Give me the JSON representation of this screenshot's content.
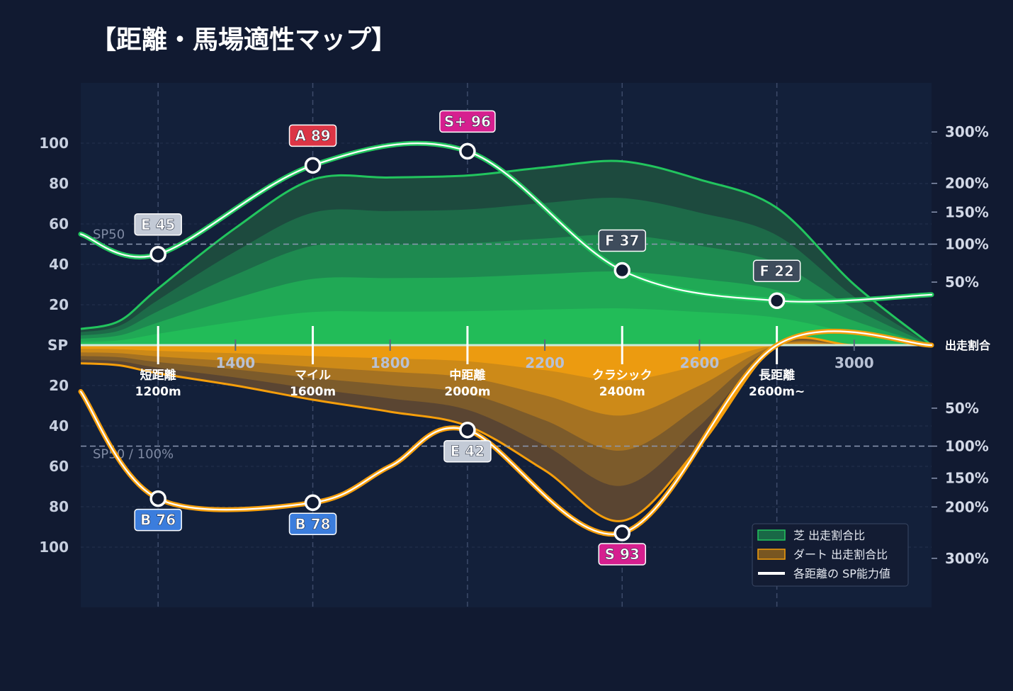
{
  "title": "【距離・馬場適性マップ】",
  "chart_data": {
    "type": "area",
    "x_axis": {
      "range": [
        1000,
        3200
      ],
      "ticks": [
        1400,
        1800,
        2200,
        2600,
        3000
      ]
    },
    "left_axis": {
      "center_label": "SP",
      "upper_ticks": [
        20,
        40,
        60,
        80,
        100
      ],
      "lower_ticks": [
        20,
        40,
        60,
        80,
        100
      ]
    },
    "right_axis": {
      "center_label": "出走割合",
      "upper_ticks": [
        "50%",
        "100%",
        "150%",
        "200%",
        "300%"
      ],
      "lower_ticks": [
        "50%",
        "100%",
        "150%",
        "200%",
        "300%"
      ]
    },
    "reference_lines": [
      {
        "label": "SP50",
        "side": "upper",
        "sp": 50
      },
      {
        "label": "SP50 / 100%",
        "side": "lower",
        "sp": 50
      }
    ],
    "categories": [
      {
        "name": "短距離",
        "distance": "1200m",
        "x": 1200
      },
      {
        "name": "マイル",
        "distance": "1600m",
        "x": 1600
      },
      {
        "name": "中距離",
        "distance": "2000m",
        "x": 2000
      },
      {
        "name": "クラシック",
        "distance": "2400m",
        "x": 2400
      },
      {
        "name": "長距離",
        "distance": "2600m~",
        "x": 2800
      }
    ],
    "series": [
      {
        "name": "芝 出走割合比",
        "color": "#22c55e",
        "x": [
          1000,
          1100,
          1200,
          1400,
          1600,
          1800,
          2000,
          2200,
          2400,
          2600,
          2800,
          3000,
          3200
        ],
        "values": [
          8,
          12,
          28,
          58,
          82,
          83,
          84,
          88,
          91,
          82,
          68,
          30,
          0
        ]
      },
      {
        "name": "ダート 出走割合比",
        "color": "#f59e0b",
        "x": [
          1000,
          1100,
          1200,
          1400,
          1600,
          1800,
          2000,
          2200,
          2400,
          2600,
          2800,
          3000,
          3200
        ],
        "values": [
          9,
          10,
          14,
          20,
          27,
          33,
          40,
          62,
          87,
          50,
          0,
          0,
          0
        ]
      },
      {
        "name": "各距離の SP能力値",
        "color": "#ffffff",
        "surface": [
          {
            "name": "芝",
            "x": [
              1000,
              1200,
              1600,
              2000,
              2400,
              2800,
              3200
            ],
            "values": [
              55,
              45,
              89,
              96,
              37,
              22,
              25
            ]
          },
          {
            "name": "ダート",
            "x": [
              1000,
              1200,
              1600,
              1800,
              2000,
              2400,
              2800,
              3200
            ],
            "values": [
              23,
              76,
              78,
              60,
              42,
              93,
              0,
              0
            ]
          }
        ]
      }
    ],
    "points": [
      {
        "surface": "芝",
        "x": 1200,
        "sp": 45,
        "label": "E 45",
        "grade_color": "#c3cad6",
        "text_color": "#1b2438"
      },
      {
        "surface": "芝",
        "x": 1600,
        "sp": 89,
        "label": "A 89",
        "grade_color": "#dc3545",
        "text_color": "#ffffff"
      },
      {
        "surface": "芝",
        "x": 2000,
        "sp": 96,
        "label": "S+ 96",
        "grade_color": "#d61f8f",
        "text_color": "#ffffff"
      },
      {
        "surface": "芝",
        "x": 2400,
        "sp": 37,
        "label": "F 37",
        "grade_color": "#3e4c5c",
        "text_color": "#ffffff"
      },
      {
        "surface": "芝",
        "x": 2800,
        "sp": 22,
        "label": "F 22",
        "grade_color": "#3e4c5c",
        "text_color": "#ffffff"
      },
      {
        "surface": "ダート",
        "x": 1200,
        "sp": 76,
        "label": "B 76",
        "grade_color": "#3b7ddd",
        "text_color": "#ffffff"
      },
      {
        "surface": "ダート",
        "x": 1600,
        "sp": 78,
        "label": "B 78",
        "grade_color": "#3b7ddd",
        "text_color": "#ffffff"
      },
      {
        "surface": "ダート",
        "x": 2000,
        "sp": 42,
        "label": "E 42",
        "grade_color": "#c3cad6",
        "text_color": "#1b2438"
      },
      {
        "surface": "ダート",
        "x": 2400,
        "sp": 93,
        "label": "S 93",
        "grade_color": "#d61f8f",
        "text_color": "#ffffff"
      }
    ],
    "legend": {
      "position": "bottom-right",
      "items": [
        {
          "label": "芝 出走割合比",
          "color": "#22c55e"
        },
        {
          "label": "ダート 出走割合比",
          "color": "#f59e0b"
        },
        {
          "label": "各距離の SP能力値",
          "color": "#ffffff"
        }
      ]
    },
    "grid": true
  }
}
